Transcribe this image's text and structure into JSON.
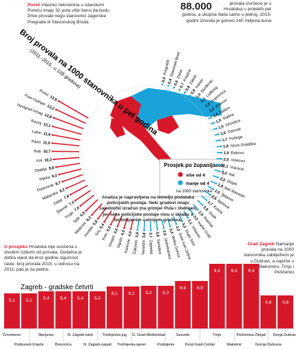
{
  "texts": {
    "title": "Broj provala na 1000 stanovnika u pet godina",
    "subtitle": "(2011.-2015., u 128 gradova)",
    "intro_head": "Poreč",
    "intro": "Vlasnici nekretnina u istarskom Poreču imaju 32 puta više šansi da budu žrtve provale nego stanovnici zagorske Pregrade ili Slavonskog Broda",
    "stat_number": "88.000",
    "stat_text": "provala izvršeno je u Hrvatskoj u protekih pet godina, a ukupna šteta samo u jednoj, 2015. godini iznosila je gotovo 140 milijuna kuna",
    "note": "Analiza je napravljena na temelju podataka policijskih postaja. Neki gradovi imaju zajednički izračun (na primjer Pula i Vodnjan) jer neke policijske postaje nisu u skladu s teritorijalnim ustrojem gradova.",
    "avg_head": "U prosjeku",
    "avg": "Hrvatska nije suočena s visokim rizikom od provala. Dodatna je dobra vijest da kroz godine sigurnost raste: broj provala 2015. u odnosu na 2011. pao je za petinu.",
    "zg_head": "Grad Zagreb",
    "zg": "Namanje provala na 1000 stanovnika zabilježeno je u Dubravi, a najviše u Maksimiru, Trnju i Peščenici"
  },
  "map_legend": {
    "title": "Prosjek po županijama",
    "high": "više od 4",
    "low": "manje od 4",
    "unit": "na 1000 stanovnika"
  },
  "chart_data": [
    {
      "type": "radial-bar",
      "threshold": 4,
      "color_high": "#d7182a",
      "color_low": "#1aa3d9",
      "categories": [
        "Pregrada",
        "Slavonski Brod",
        "Zlatar",
        "Krapina",
        "Zabok",
        "Ivanec",
        "Đurđevac",
        "Ludbreg",
        "Koprivnica",
        "Križevci",
        "Našice",
        "Slatina",
        "Virovitica",
        "Daruvar",
        "Požega",
        "Nova Gradiška",
        "Đakovo",
        "Vinkovci",
        "Vukovar",
        "Ilok",
        "Osijek",
        "Beli Manastir",
        "Valpovo",
        "Bjelovar",
        "Kutina",
        "Sisak",
        "Petrinja",
        "Ivanić Grad",
        "Vrbovec",
        "Dugo Selo",
        "Sveti Ivan Zelina",
        "Velika Gorica",
        "Jastrebarsko",
        "Samobor",
        "Zaprešić",
        "Varaždin",
        "Čakovec",
        "Karlovac",
        "Ogulin",
        "Gospić",
        "Knin",
        "Sinj",
        "Imotski",
        "Metković",
        "Split",
        "Trogir",
        "Šibenik",
        "Zadar",
        "Makarska",
        "Dubrovnik",
        "Rijeka",
        "Opatija",
        "Krk",
        "Rab",
        "Pazin",
        "Labin",
        "Rovinj",
        "Novigrad-Umag",
        "Pula-Vodnjan",
        "Poreč"
      ],
      "values": [
        0.4,
        0.4,
        0.6,
        0.7,
        0.8,
        0.9,
        1.0,
        1.1,
        1.2,
        1.3,
        1.4,
        1.5,
        1.5,
        1.6,
        1.7,
        1.8,
        1.9,
        2.0,
        2.1,
        2.2,
        2.3,
        2.4,
        2.5,
        2.6,
        2.7,
        2.8,
        2.9,
        3.0,
        3.1,
        3.2,
        3.3,
        3.4,
        3.5,
        3.6,
        3.7,
        3.8,
        3.9,
        4.0,
        4.3,
        4.6,
        5.0,
        5.4,
        5.8,
        6.2,
        6.6,
        7.0,
        7.4,
        7.8,
        8.2,
        8.7,
        9.2,
        9.8,
        10.3,
        10.7,
        11.0,
        11.4,
        12.1,
        12.8,
        13.2,
        13.9
      ],
      "value_labels": [
        "0,4",
        "0,4",
        "0,6",
        "0,7",
        "0,8",
        "0,9",
        "1,0",
        "1,1",
        "1,2",
        "1,3",
        "1,4",
        "1,5",
        "1,5",
        "1,6",
        "1,7",
        "1,8",
        "1,9",
        "2,0",
        "2,1",
        "2,2",
        "2,3",
        "2,4",
        "2,5",
        "2,6",
        "2,7",
        "2,8",
        "2,9",
        "3,0",
        "3,1",
        "3,2",
        "3,3",
        "3,4",
        "3,5",
        "3,6",
        "3,7",
        "3,8",
        "3,9",
        "4,0",
        "4,3",
        "4,6",
        "5,0",
        "5,4",
        "5,8",
        "6,2",
        "6,6",
        "7,0",
        "7,4",
        "7,8",
        "8,2",
        "8,7",
        "9,2",
        "9,8",
        "10,3",
        "10,7",
        "11,0",
        "11,4",
        "12,1",
        "12,8",
        "13,2",
        "13,9"
      ]
    },
    {
      "type": "bar",
      "title": "Zagreb - gradske četvrti",
      "color": "#d7182a",
      "ylim": [
        0,
        10
      ],
      "categories": [
        "Črnomerec",
        "Podsused-Vrapče",
        "Stenjevec",
        "Brezovica",
        "N. Zagreb-istok",
        "N. Zagreb-zapad",
        "Trešnjevka-jug",
        "Trešnjevka-sjever",
        "G. Grad-Medveščak",
        "Podsljeme",
        "Sesvete",
        "Donji Grad-Centar",
        "Trnje",
        "Maksimir",
        "Peščenica-Žitnjak",
        "Gornja Dubrava",
        "Donja Dubrava"
      ],
      "values": [
        5.1,
        5.1,
        5.4,
        5.4,
        5.4,
        5.4,
        6.1,
        6.1,
        6.2,
        6.2,
        6.9,
        6.9,
        9.4,
        9.4,
        9.4,
        4.8,
        4.8
      ],
      "value_labels": [
        "5,1",
        "5,1",
        "5,4",
        "5,4",
        "5,4",
        "5,4",
        "6,1",
        "6,1",
        "6,2",
        "6,2",
        "6,9",
        "6,9",
        "9,4",
        "9,4",
        "9,4",
        "4,8",
        "4,8"
      ]
    }
  ]
}
